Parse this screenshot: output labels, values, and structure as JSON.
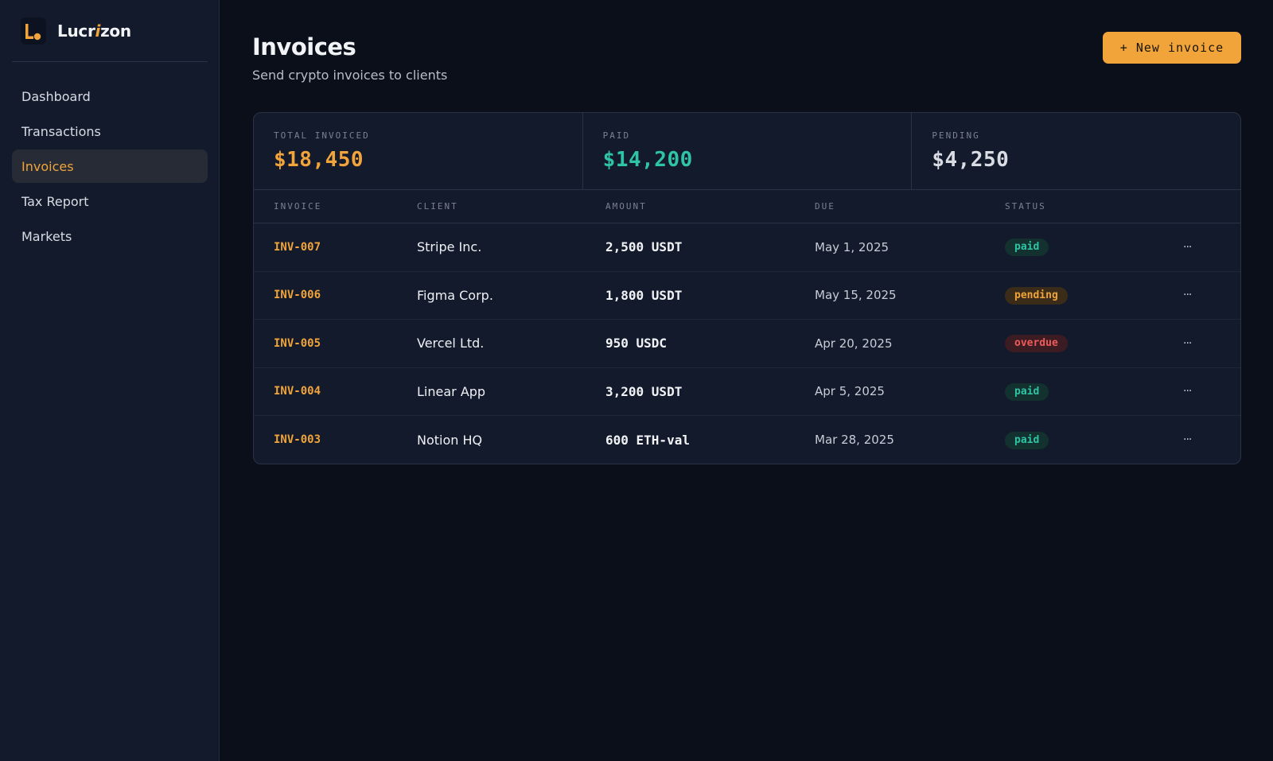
{
  "app": {
    "brand_prefix": "Lucr",
    "brand_i": "i",
    "brand_suffix": "zon",
    "logo": "lucrizon-logo",
    "accent": "#f0a43a"
  },
  "sidebar": {
    "items": [
      {
        "label": "Dashboard",
        "active": false
      },
      {
        "label": "Transactions",
        "active": false
      },
      {
        "label": "Invoices",
        "active": true
      },
      {
        "label": "Tax Report",
        "active": false
      },
      {
        "label": "Markets",
        "active": false
      }
    ]
  },
  "header": {
    "title": "Invoices",
    "subtitle": "Send crypto invoices to clients",
    "new_button": "+ New invoice"
  },
  "stats": [
    {
      "label": "TOTAL INVOICED",
      "value": "$18,450",
      "color": "#f0a43a"
    },
    {
      "label": "PAID",
      "value": "$14,200",
      "color": "#2fc4a4"
    },
    {
      "label": "PENDING",
      "value": "$4,250",
      "color": "#d9dce3"
    }
  ],
  "table": {
    "columns": [
      "INVOICE",
      "CLIENT",
      "AMOUNT",
      "DUE",
      "STATUS"
    ],
    "rows": [
      {
        "id": "INV-007",
        "client": "Stripe Inc.",
        "amount": "2,500 USDT",
        "due": "May 1, 2025",
        "status": "paid",
        "more": "···"
      },
      {
        "id": "INV-006",
        "client": "Figma Corp.",
        "amount": "1,800 USDT",
        "due": "May 15, 2025",
        "status": "pending",
        "more": "···"
      },
      {
        "id": "INV-005",
        "client": "Vercel Ltd.",
        "amount": "950 USDC",
        "due": "Apr 20, 2025",
        "status": "overdue",
        "more": "···"
      },
      {
        "id": "INV-004",
        "client": "Linear App",
        "amount": "3,200 USDT",
        "due": "Apr 5, 2025",
        "status": "paid",
        "more": "···"
      },
      {
        "id": "INV-003",
        "client": "Notion HQ",
        "amount": "600 ETH-val",
        "due": "Mar 28, 2025",
        "status": "paid",
        "more": "···"
      }
    ]
  }
}
